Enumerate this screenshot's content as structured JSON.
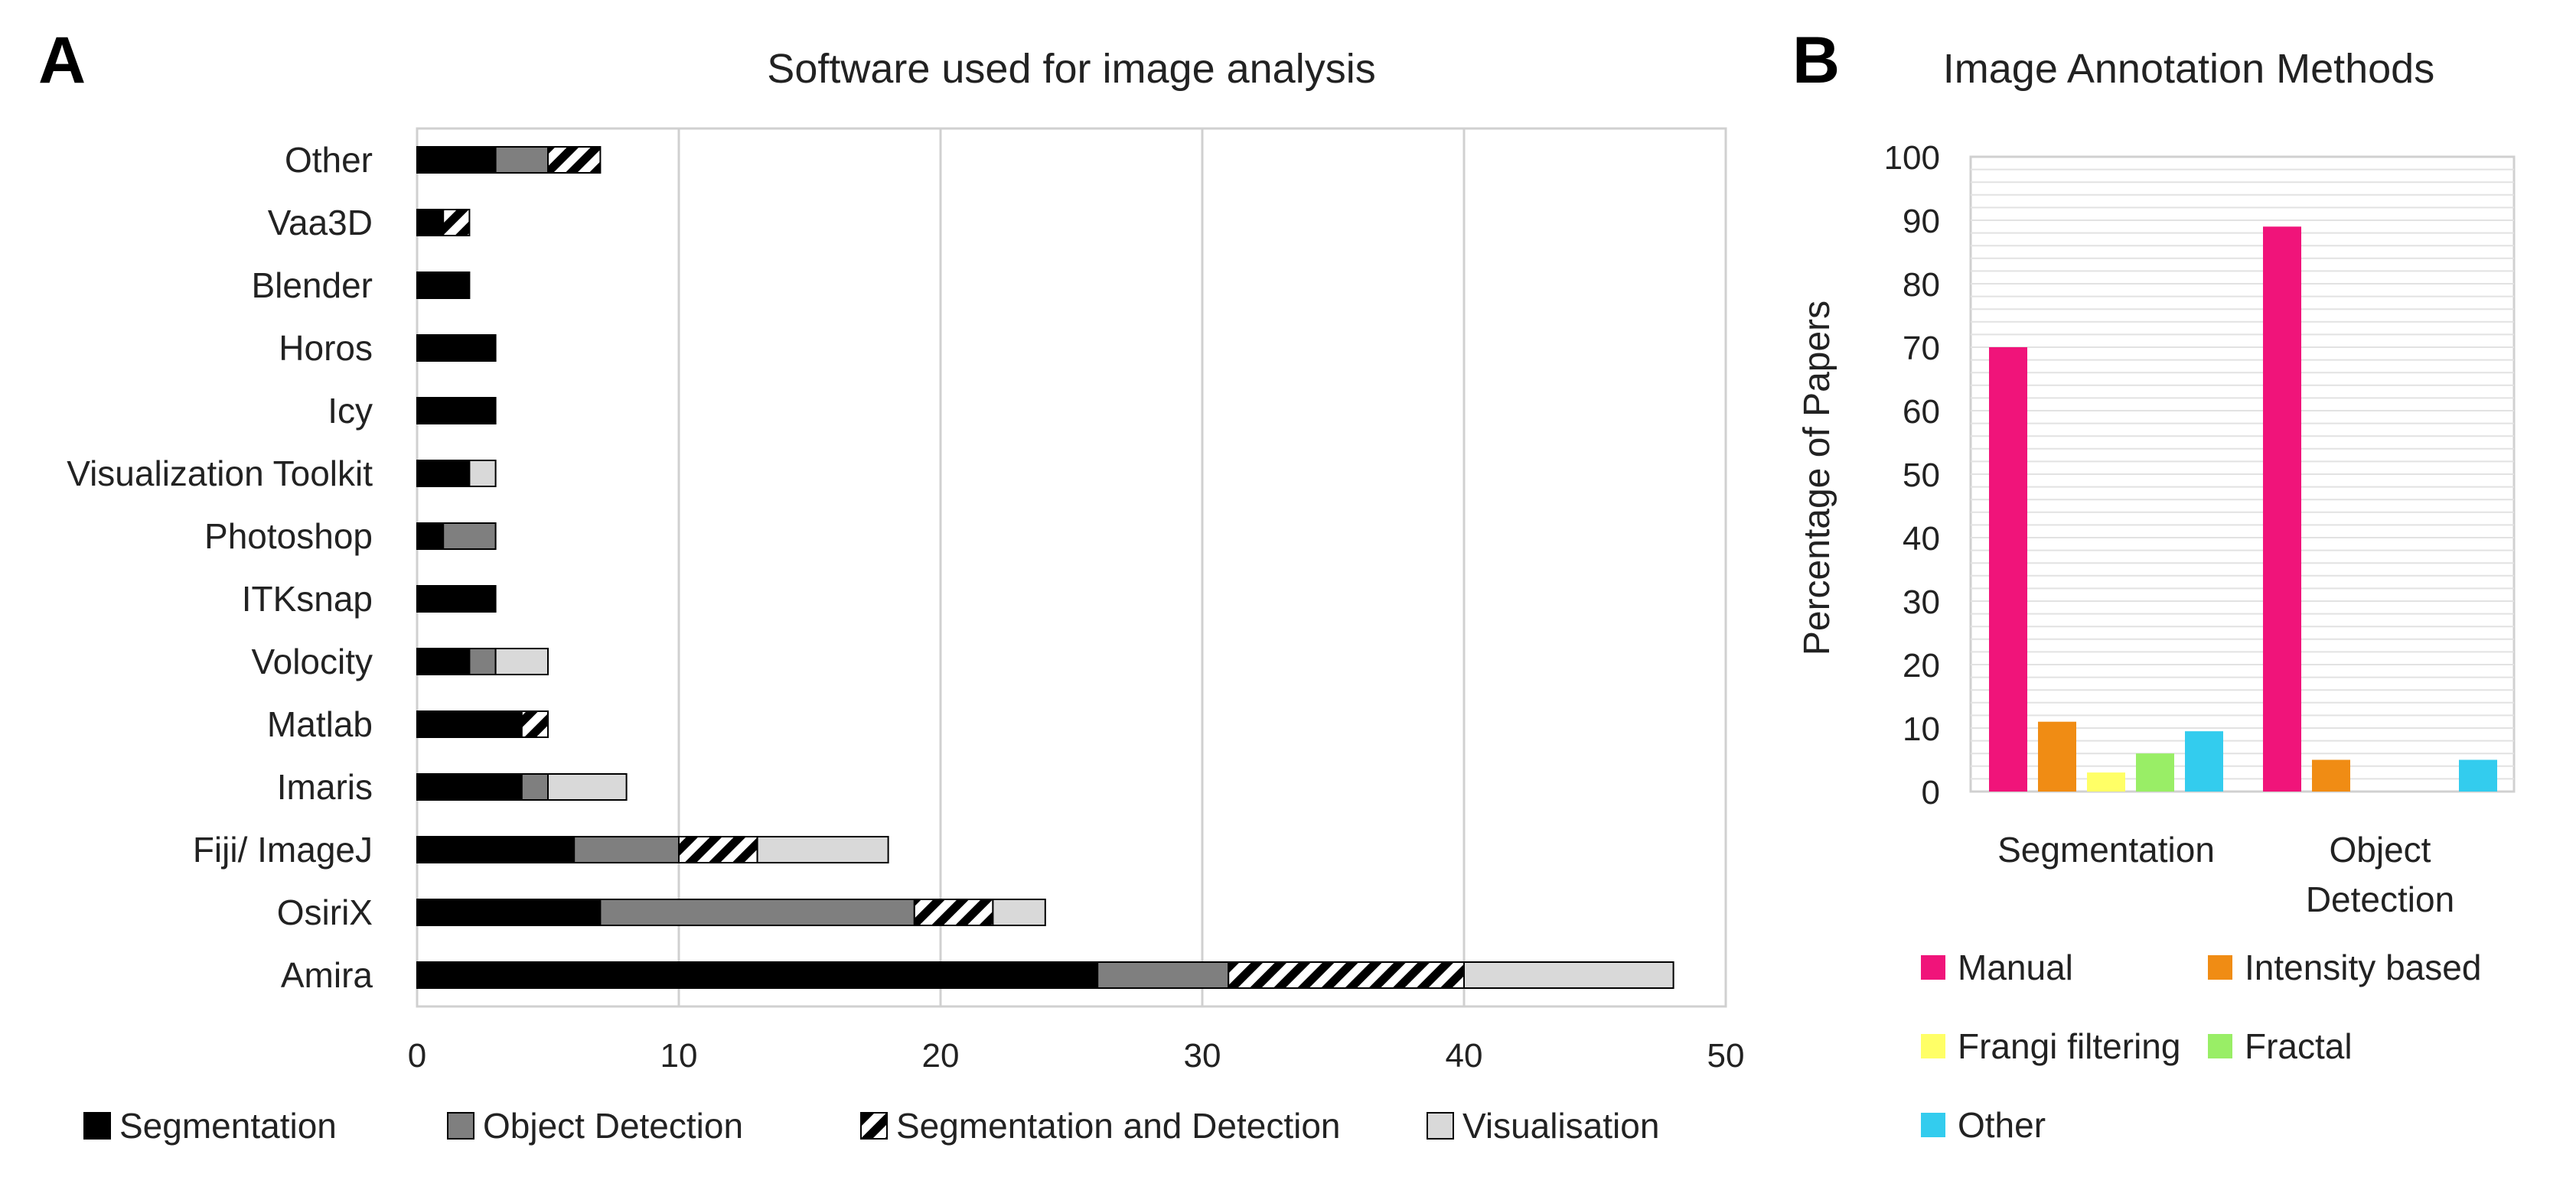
{
  "panels": {
    "a": "A",
    "b": "B"
  },
  "chart_data": [
    {
      "type": "bar",
      "orientation": "horizontal",
      "stacked": true,
      "title": "Software used for image analysis",
      "xlabel": "",
      "ylabel": "",
      "xlim": [
        0,
        50
      ],
      "xticks": [
        0,
        10,
        20,
        30,
        40,
        50
      ],
      "grid": true,
      "legend_position": "bottom",
      "categories": [
        "Other",
        "Vaa3D",
        "Blender",
        "Horos",
        "Icy",
        "Visualization Toolkit",
        "Photoshop",
        "ITKsnap",
        "Volocity",
        "Matlab",
        "Imaris",
        "Fiji/ ImageJ",
        "OsiriX",
        "Amira"
      ],
      "series": [
        {
          "name": "Segmentation",
          "color": "#000000",
          "pattern": "solid",
          "values": [
            3,
            1,
            2,
            3,
            3,
            2,
            1,
            3,
            2,
            4,
            4,
            6,
            7,
            26
          ]
        },
        {
          "name": "Object Detection",
          "color": "#7f7f7f",
          "pattern": "solid",
          "values": [
            2,
            0,
            0,
            0,
            0,
            0,
            2,
            0,
            1,
            0,
            1,
            4,
            12,
            5
          ]
        },
        {
          "name": "Segmentation and Detection",
          "color": "#000000",
          "pattern": "hatch",
          "values": [
            2,
            1,
            0,
            0,
            0,
            0,
            0,
            0,
            0,
            1,
            0,
            3,
            3,
            9
          ]
        },
        {
          "name": "Visualisation",
          "color": "#d9d9d9",
          "pattern": "solid",
          "values": [
            0,
            0,
            0,
            0,
            0,
            1,
            0,
            0,
            2,
            0,
            3,
            5,
            2,
            8
          ]
        }
      ]
    },
    {
      "type": "bar",
      "title": "Image Annotation Methods",
      "xlabel": "",
      "ylabel": "Percentage of Papers",
      "ylim": [
        0,
        100
      ],
      "yticks": [
        0,
        10,
        20,
        30,
        40,
        50,
        60,
        70,
        80,
        90,
        100
      ],
      "grid": true,
      "legend_position": "bottom",
      "categories": [
        {
          "lines": [
            "Segmentation"
          ]
        },
        {
          "lines": [
            "Object",
            "Detection"
          ]
        }
      ],
      "series": [
        {
          "name": "Manual",
          "color": "#f0147a",
          "values": [
            70,
            89
          ]
        },
        {
          "name": "Intensity based",
          "color": "#f08c14",
          "values": [
            11,
            5
          ]
        },
        {
          "name": "Frangi filtering",
          "color": "#ffff66",
          "values": [
            3,
            0
          ]
        },
        {
          "name": "Fractal",
          "color": "#99ee66",
          "values": [
            6,
            0
          ]
        },
        {
          "name": "Other",
          "color": "#33ccee",
          "values": [
            9.5,
            5
          ]
        }
      ]
    }
  ]
}
